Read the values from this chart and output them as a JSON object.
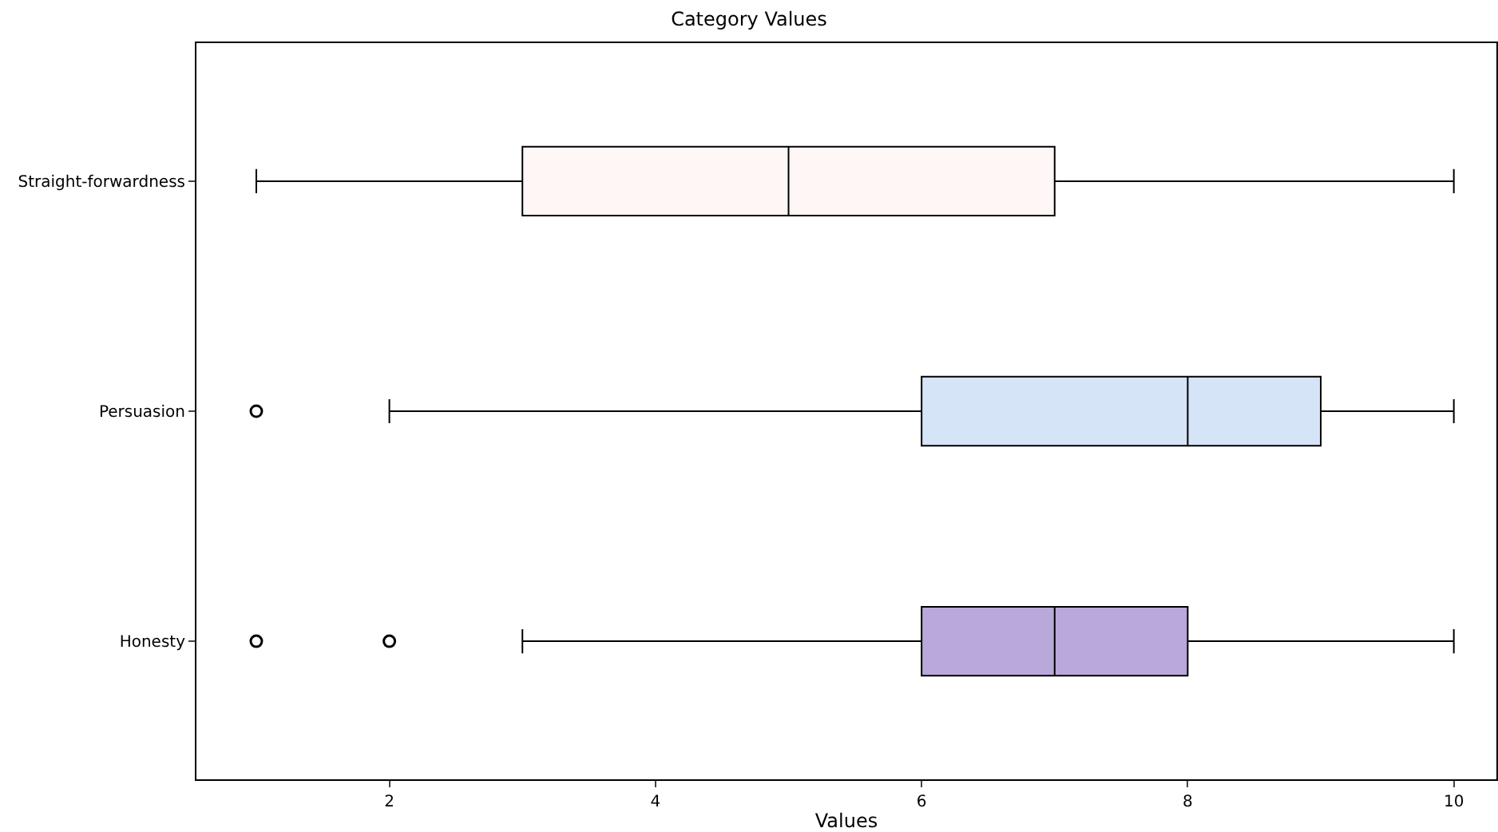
{
  "chart_data": {
    "type": "box",
    "title": "Category Values",
    "xlabel": "Values",
    "orientation": "horizontal",
    "categories": [
      "Straight-forwardness",
      "Persuasion",
      "Honesty"
    ],
    "colors": [
      "#fff6f6",
      "#d6e4f8",
      "#b9a8da"
    ],
    "boxes": [
      {
        "low": 1,
        "q1": 3,
        "median": 5,
        "q3": 7,
        "high": 10
      },
      {
        "low": 2,
        "q1": 6,
        "median": 8,
        "q3": 9,
        "high": 10,
        "outliers": [
          1
        ]
      },
      {
        "low": 3,
        "q1": 6,
        "median": 7,
        "q3": 8,
        "high": 10,
        "outliers": [
          1,
          2
        ]
      }
    ],
    "xlim": [
      0.55,
      10.32
    ],
    "xticks": [
      2,
      4,
      6,
      8,
      10
    ],
    "grid": false
  }
}
